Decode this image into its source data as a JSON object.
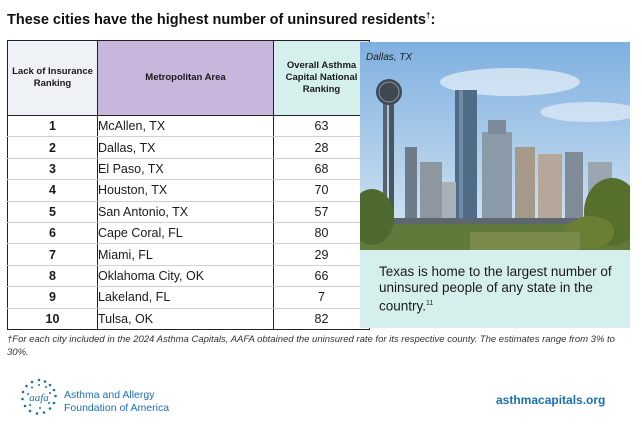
{
  "title": "These cities have the highest number of uninsured residents",
  "title_mark": "†",
  "title_suffix": ":",
  "table": {
    "headers": {
      "rank": "Lack of Insurance Ranking",
      "metro": "Metropolitan Area",
      "capital": "Overall Asthma Capital National Ranking"
    },
    "rows": [
      {
        "rank": "1",
        "metro": "McAllen, TX",
        "capital": "63"
      },
      {
        "rank": "2",
        "metro": "Dallas, TX",
        "capital": "28"
      },
      {
        "rank": "3",
        "metro": "El Paso, TX",
        "capital": "68"
      },
      {
        "rank": "4",
        "metro": "Houston, TX",
        "capital": "70"
      },
      {
        "rank": "5",
        "metro": "San Antonio, TX",
        "capital": "57"
      },
      {
        "rank": "6",
        "metro": "Cape Coral, FL",
        "capital": "80"
      },
      {
        "rank": "7",
        "metro": "Miami, FL",
        "capital": "29"
      },
      {
        "rank": "8",
        "metro": "Oklahoma City, OK",
        "capital": "66"
      },
      {
        "rank": "9",
        "metro": "Lakeland, FL",
        "capital": "7"
      },
      {
        "rank": "10",
        "metro": "Tulsa, OK",
        "capital": "82"
      }
    ],
    "header_colors": {
      "rank": "#eef1f6",
      "metro": "#c9b6dc",
      "capital": "#d5f0ec"
    }
  },
  "photo": {
    "caption": "Dallas, TX"
  },
  "callout": {
    "text": "Texas is home to the largest number of uninsured people of any state in the country.",
    "ref": "11",
    "background": "#d5f0ec"
  },
  "footnote": "†For each city included in the 2024 Asthma Capitals, AAFA obtained the uninsured rate for its respective county. The estimates range from 3% to 30%.",
  "footer": {
    "logo_text": "aafa",
    "org_line1": "Asthma and Allergy",
    "org_line2": "Foundation of America",
    "website": "asthmacapitals.org",
    "brand_color": "#1b6fb5"
  }
}
